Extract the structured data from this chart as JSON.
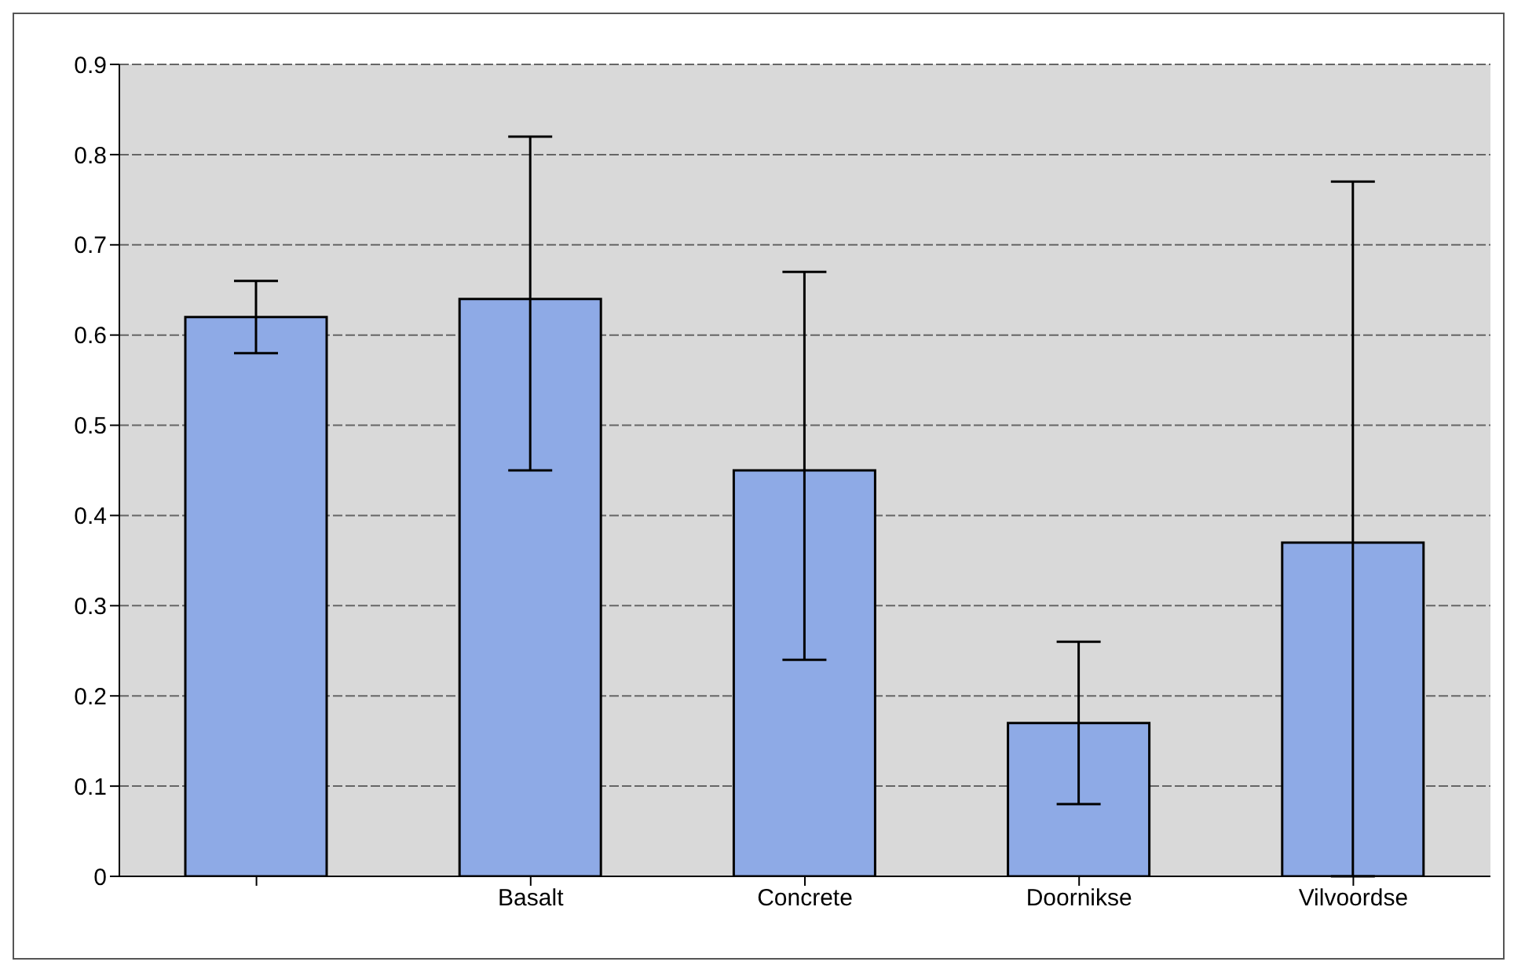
{
  "chart_data": {
    "type": "bar",
    "categories": [
      null,
      "Basalt",
      "Concrete",
      "Doornikse",
      "Vilvoordse"
    ],
    "values": [
      0.62,
      0.64,
      0.45,
      0.17,
      0.37
    ],
    "errors": [
      [
        0.58,
        0.66
      ],
      [
        0.45,
        0.82
      ],
      [
        0.24,
        0.67
      ],
      [
        0.08,
        0.26
      ],
      [
        0,
        0.77
      ]
    ],
    "color": "#8eaae6",
    "ylim": [
      0,
      0.9
    ],
    "yticks": [
      0,
      0.1,
      0.2,
      0.3,
      0.4,
      0.5,
      0.6,
      0.7,
      0.8,
      0.9
    ],
    "grid": "y",
    "legend": false
  }
}
